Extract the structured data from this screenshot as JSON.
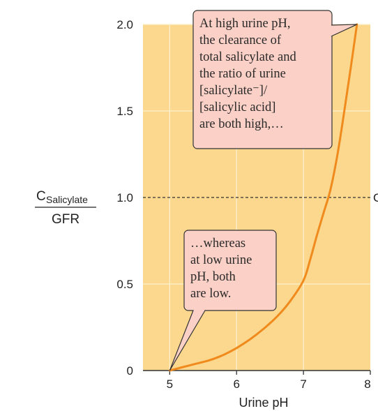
{
  "chart_data": {
    "type": "line",
    "xlabel": "Urine pH",
    "ylabel": {
      "main": "C",
      "sub": "Salicylate",
      "denominator": "GFR"
    },
    "xlim": [
      4.6,
      8.0
    ],
    "ylim": [
      0,
      2.0
    ],
    "x_ticks": [
      "5",
      "6",
      "7",
      "8"
    ],
    "y_ticks": [
      "0",
      "0.5",
      "1.0",
      "1.5",
      "2.0"
    ],
    "grid": true,
    "reference_line": {
      "y": 1.0,
      "style": "dashed",
      "label": "C"
    },
    "series": [
      {
        "color": "#f08a1c",
        "x": [
          5.0,
          5.2,
          5.4,
          5.6,
          5.8,
          6.0,
          6.2,
          6.4,
          6.6,
          6.8,
          7.0,
          7.1,
          7.2,
          7.3,
          7.4,
          7.5,
          7.6,
          7.7,
          7.8
        ],
        "y": [
          0.0,
          0.02,
          0.04,
          0.06,
          0.09,
          0.13,
          0.18,
          0.24,
          0.31,
          0.4,
          0.52,
          0.64,
          0.78,
          0.91,
          1.04,
          1.23,
          1.47,
          1.73,
          2.0
        ]
      }
    ],
    "annotations": [
      {
        "lines": [
          "At high urine pH,",
          "the clearance of",
          "total salicylate and",
          "the ratio of urine",
          "[salicylate⁻]/",
          "[salicylic acid]",
          "are both high,…"
        ],
        "points_to": {
          "x": 7.8,
          "y": 2.0
        }
      },
      {
        "lines": [
          "…whereas",
          "at low urine",
          "pH, both",
          "are low."
        ],
        "points_to": {
          "x": 5.0,
          "y": 0.0
        }
      }
    ]
  },
  "colors": {
    "plot_background": "#fbd88e",
    "grid": "#fdf0cf",
    "curve": "#f08a1c",
    "annotation_fill": "#fbd0c6",
    "annotation_stroke": "#333333"
  }
}
